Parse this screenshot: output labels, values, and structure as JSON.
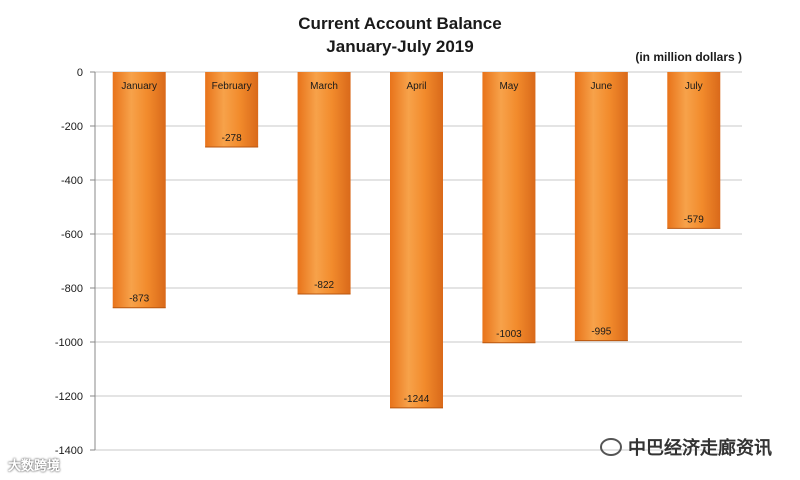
{
  "chart_data": {
    "type": "bar",
    "title_line1": "Current Account Balance",
    "title_line2": "January-July 2019",
    "unit_note": "(in million dollars )",
    "categories": [
      "January",
      "February",
      "March",
      "April",
      "May",
      "June",
      "July"
    ],
    "values": [
      -873,
      -278,
      -822,
      -1244,
      -1003,
      -995,
      -579
    ],
    "ylim": [
      -1400,
      0
    ],
    "yticks": [
      0,
      -200,
      -400,
      -600,
      -800,
      -1000,
      -1200,
      -1400
    ],
    "grid": true,
    "bar_color": "#f08a2a"
  },
  "watermarks": {
    "left": "大数跨境",
    "right": "中巴经济走廊资讯"
  }
}
